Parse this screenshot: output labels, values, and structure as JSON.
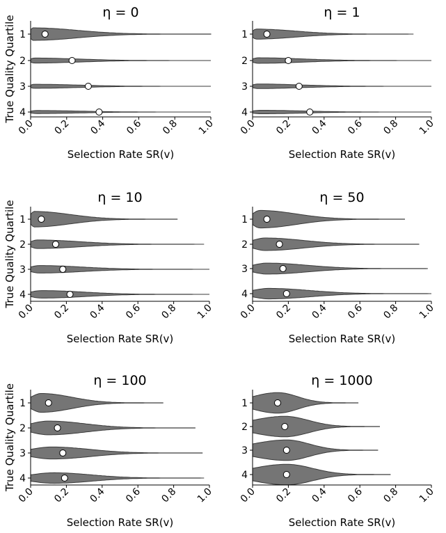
{
  "chart_data": [
    {
      "type": "violin",
      "title": "η = 0",
      "xlabel": "Selection Rate SR(v)",
      "ylabel": "True Quality Quartile",
      "xlim": [
        0.0,
        1.0
      ],
      "xticks": [
        "0.0",
        "0.2",
        "0.4",
        "0.6",
        "0.8",
        "1.0"
      ],
      "categories": [
        "1",
        "2",
        "3",
        "4"
      ],
      "medians": [
        0.08,
        0.23,
        0.32,
        0.38
      ],
      "max": [
        1.0,
        1.0,
        1.0,
        1.0
      ],
      "modes": [
        0.01,
        0.02,
        0.02,
        0.03
      ],
      "widths": [
        0.5,
        0.2,
        0.16,
        0.12
      ]
    },
    {
      "type": "violin",
      "title": "η = 1",
      "xlabel": "Selection Rate SR(v)",
      "ylabel": "",
      "xlim": [
        0.0,
        1.0
      ],
      "xticks": [
        "0.0",
        "0.2",
        "0.4",
        "0.6",
        "0.8",
        "1.0"
      ],
      "categories": [
        "1",
        "2",
        "3",
        "4"
      ],
      "medians": [
        0.08,
        0.2,
        0.26,
        0.32
      ],
      "max": [
        0.9,
        1.0,
        1.0,
        1.0
      ],
      "modes": [
        0.02,
        0.03,
        0.03,
        0.04
      ],
      "widths": [
        0.4,
        0.22,
        0.18,
        0.14
      ]
    },
    {
      "type": "violin",
      "title": "η = 10",
      "xlabel": "Selection Rate SR(v)",
      "ylabel": "True Quality Quartile",
      "xlim": [
        0.0,
        1.0
      ],
      "xticks": [
        "0.0",
        "0.2",
        "0.4",
        "0.6",
        "0.8",
        "1.0"
      ],
      "categories": [
        "1",
        "2",
        "3",
        "4"
      ],
      "medians": [
        0.06,
        0.14,
        0.18,
        0.22
      ],
      "max": [
        0.82,
        0.97,
        1.0,
        1.0
      ],
      "modes": [
        0.02,
        0.04,
        0.05,
        0.06
      ],
      "widths": [
        0.62,
        0.34,
        0.3,
        0.3
      ]
    },
    {
      "type": "violin",
      "title": "η = 50",
      "xlabel": "Selection Rate SR(v)",
      "ylabel": "",
      "xlim": [
        0.0,
        1.0
      ],
      "xticks": [
        "0.0",
        "0.2",
        "0.4",
        "0.6",
        "0.8",
        "1.0"
      ],
      "categories": [
        "1",
        "2",
        "3",
        "4"
      ],
      "medians": [
        0.08,
        0.15,
        0.17,
        0.19
      ],
      "max": [
        0.85,
        0.93,
        0.98,
        1.0
      ],
      "modes": [
        0.04,
        0.07,
        0.08,
        0.09
      ],
      "widths": [
        0.7,
        0.5,
        0.44,
        0.42
      ]
    },
    {
      "type": "violin",
      "title": "η = 100",
      "xlabel": "Selection Rate SR(v)",
      "ylabel": "True Quality Quartile",
      "xlim": [
        0.0,
        1.0
      ],
      "xticks": [
        "0.0",
        "0.2",
        "0.4",
        "0.6",
        "0.8",
        "1.0"
      ],
      "categories": [
        "1",
        "2",
        "3",
        "4"
      ],
      "medians": [
        0.1,
        0.15,
        0.18,
        0.19
      ],
      "max": [
        0.74,
        0.92,
        0.96,
        0.97
      ],
      "modes": [
        0.06,
        0.1,
        0.12,
        0.13
      ],
      "widths": [
        0.75,
        0.55,
        0.48,
        0.42
      ]
    },
    {
      "type": "violin",
      "title": "η = 1000",
      "xlabel": "Selection Rate SR(v)",
      "ylabel": "",
      "xlim": [
        0.0,
        1.0
      ],
      "xticks": [
        "0.0",
        "0.2",
        "0.4",
        "0.6",
        "0.8",
        "1.0"
      ],
      "categories": [
        "1",
        "2",
        "3",
        "4"
      ],
      "medians": [
        0.14,
        0.18,
        0.19,
        0.19
      ],
      "max": [
        0.59,
        0.71,
        0.7,
        0.77
      ],
      "modes": [
        0.14,
        0.18,
        0.19,
        0.19
      ],
      "widths": [
        0.82,
        0.82,
        0.82,
        0.82
      ]
    }
  ]
}
